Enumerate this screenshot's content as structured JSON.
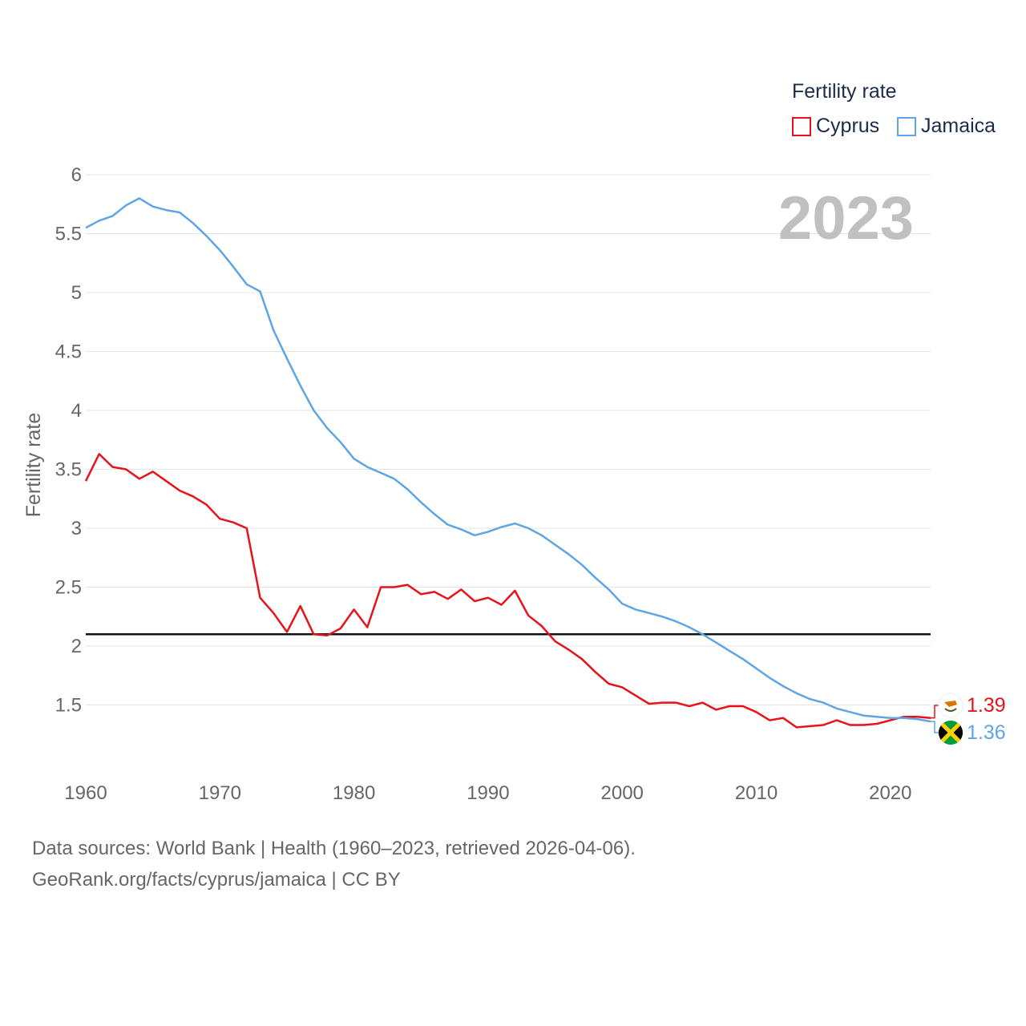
{
  "chart_data": {
    "type": "line",
    "year_label": "2023",
    "ylabel": "Fertility rate",
    "legend_title": "Fertility rate",
    "ylim": [
      1.0,
      6.1
    ],
    "xlim": [
      1960,
      2023
    ],
    "y_ticks": [
      "1.5",
      "2",
      "2.5",
      "3",
      "3.5",
      "4",
      "4.5",
      "5",
      "5.5",
      "6"
    ],
    "x_ticks": [
      "1960",
      "1970",
      "1980",
      "1990",
      "2000",
      "2010",
      "2020"
    ],
    "reference_line": 2.1,
    "series": [
      {
        "name": "Cyprus",
        "color": "#e8131a",
        "end_label": "1.39",
        "flag": "cyprus-flag",
        "x": [
          1960,
          1961,
          1962,
          1963,
          1964,
          1965,
          1966,
          1967,
          1968,
          1969,
          1970,
          1971,
          1972,
          1973,
          1974,
          1975,
          1976,
          1977,
          1978,
          1979,
          1980,
          1981,
          1982,
          1983,
          1984,
          1985,
          1986,
          1987,
          1988,
          1989,
          1990,
          1991,
          1992,
          1993,
          1994,
          1995,
          1996,
          1997,
          1998,
          1999,
          2000,
          2001,
          2002,
          2003,
          2004,
          2005,
          2006,
          2007,
          2008,
          2009,
          2010,
          2011,
          2012,
          2013,
          2014,
          2015,
          2016,
          2017,
          2018,
          2019,
          2020,
          2021,
          2022,
          2023
        ],
        "values": [
          3.4,
          3.63,
          3.52,
          3.5,
          3.42,
          3.48,
          3.4,
          3.32,
          3.27,
          3.2,
          3.08,
          3.05,
          3.0,
          2.41,
          2.28,
          2.12,
          2.34,
          2.1,
          2.09,
          2.15,
          2.31,
          2.16,
          2.5,
          2.5,
          2.52,
          2.44,
          2.46,
          2.4,
          2.48,
          2.38,
          2.41,
          2.35,
          2.47,
          2.26,
          2.17,
          2.04,
          1.97,
          1.89,
          1.78,
          1.68,
          1.65,
          1.58,
          1.51,
          1.52,
          1.52,
          1.49,
          1.52,
          1.46,
          1.49,
          1.49,
          1.44,
          1.37,
          1.39,
          1.31,
          1.32,
          1.33,
          1.37,
          1.33,
          1.33,
          1.34,
          1.37,
          1.4,
          1.4,
          1.39
        ]
      },
      {
        "name": "Jamaica",
        "color": "#5ea5e5",
        "end_label": "1.36",
        "flag": "jamaica-flag",
        "x": [
          1960,
          1961,
          1962,
          1963,
          1964,
          1965,
          1966,
          1967,
          1968,
          1969,
          1970,
          1971,
          1972,
          1973,
          1974,
          1975,
          1976,
          1977,
          1978,
          1979,
          1980,
          1981,
          1982,
          1983,
          1984,
          1985,
          1986,
          1987,
          1988,
          1989,
          1990,
          1991,
          1992,
          1993,
          1994,
          1995,
          1996,
          1997,
          1998,
          1999,
          2000,
          2001,
          2002,
          2003,
          2004,
          2005,
          2006,
          2007,
          2008,
          2009,
          2010,
          2011,
          2012,
          2013,
          2014,
          2015,
          2016,
          2017,
          2018,
          2019,
          2020,
          2021,
          2022,
          2023
        ],
        "values": [
          5.55,
          5.61,
          5.65,
          5.74,
          5.8,
          5.73,
          5.7,
          5.68,
          5.59,
          5.48,
          5.36,
          5.22,
          5.07,
          5.01,
          4.68,
          4.44,
          4.21,
          4.0,
          3.85,
          3.73,
          3.59,
          3.52,
          3.47,
          3.42,
          3.33,
          3.22,
          3.12,
          3.03,
          2.99,
          2.94,
          2.97,
          3.01,
          3.04,
          3.0,
          2.94,
          2.86,
          2.78,
          2.69,
          2.58,
          2.48,
          2.36,
          2.31,
          2.28,
          2.25,
          2.21,
          2.16,
          2.1,
          2.03,
          1.96,
          1.89,
          1.81,
          1.73,
          1.66,
          1.6,
          1.55,
          1.52,
          1.47,
          1.44,
          1.41,
          1.4,
          1.39,
          1.39,
          1.38,
          1.36
        ]
      }
    ]
  },
  "footer": {
    "line1": "Data sources: World Bank | Health (1960–2023, retrieved 2026-04-06).",
    "line2": "GeoRank.org/facts/cyprus/jamaica | CC BY"
  }
}
